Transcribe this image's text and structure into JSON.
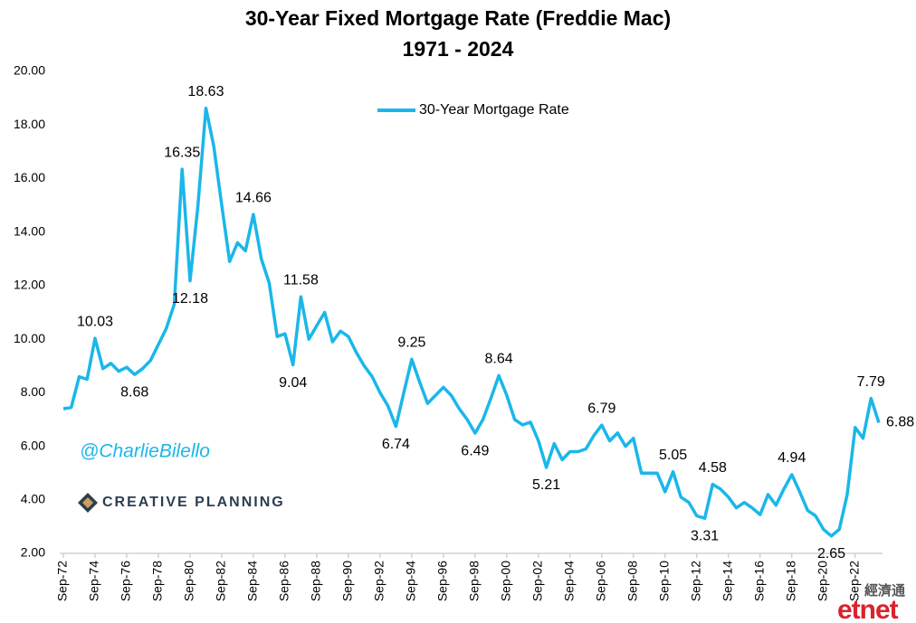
{
  "chart_data": {
    "type": "line",
    "title": "30-Year Fixed Mortgage Rate (Freddie Mac)",
    "subtitle": "1971 - 2024",
    "categories": [
      "Sep-72",
      null,
      null,
      null,
      "Sep-74",
      null,
      null,
      null,
      "Sep-76",
      null,
      null,
      null,
      "Sep-78",
      null,
      null,
      null,
      "Sep-80",
      null,
      null,
      null,
      "Sep-82",
      null,
      null,
      null,
      "Sep-84",
      null,
      null,
      null,
      "Sep-86",
      null,
      null,
      null,
      "Sep-88",
      null,
      null,
      null,
      "Sep-90",
      null,
      null,
      null,
      "Sep-92",
      null,
      null,
      null,
      "Sep-94",
      null,
      null,
      null,
      "Sep-96",
      null,
      null,
      null,
      "Sep-98",
      null,
      null,
      null,
      "Sep-00",
      null,
      null,
      null,
      "Sep-02",
      null,
      null,
      null,
      "Sep-04",
      null,
      null,
      null,
      "Sep-06",
      null,
      null,
      null,
      "Sep-08",
      null,
      null,
      null,
      "Sep-10",
      null,
      null,
      null,
      "Sep-12",
      null,
      null,
      null,
      "Sep-14",
      null,
      null,
      null,
      "Sep-16",
      null,
      null,
      null,
      "Sep-18",
      null,
      null,
      null,
      "Sep-20",
      null,
      null,
      null,
      "Sep-22",
      null,
      null,
      null
    ],
    "series": [
      {
        "name": "30-Year Mortgage Rate",
        "color": "#1ab7ea",
        "values": [
          7.4,
          7.45,
          8.6,
          8.5,
          10.03,
          8.9,
          9.1,
          8.8,
          8.95,
          8.68,
          8.9,
          9.2,
          9.8,
          10.4,
          11.3,
          16.35,
          12.18,
          15.0,
          18.63,
          17.2,
          15.0,
          12.9,
          13.6,
          13.3,
          14.66,
          13.0,
          12.1,
          10.1,
          10.2,
          9.04,
          11.58,
          10.0,
          10.5,
          11.0,
          9.9,
          10.3,
          10.1,
          9.5,
          9.0,
          8.6,
          8.0,
          7.5,
          6.74,
          8.0,
          9.25,
          8.4,
          7.6,
          7.9,
          8.2,
          7.9,
          7.4,
          7.0,
          6.49,
          7.0,
          7.8,
          8.64,
          7.9,
          7.0,
          6.8,
          6.9,
          6.2,
          5.21,
          6.1,
          5.5,
          5.8,
          5.8,
          5.9,
          6.4,
          6.79,
          6.2,
          6.5,
          6.0,
          6.3,
          5.0,
          5.0,
          5.0,
          4.3,
          5.05,
          4.1,
          3.9,
          3.4,
          3.31,
          4.58,
          4.4,
          4.1,
          3.7,
          3.9,
          3.7,
          3.45,
          4.2,
          3.8,
          4.4,
          4.94,
          4.3,
          3.6,
          3.4,
          2.9,
          2.65,
          2.9,
          4.2,
          6.7,
          6.3,
          7.79,
          6.88
        ],
        "value_labels": [
          null,
          null,
          null,
          null,
          "10.03",
          null,
          null,
          null,
          null,
          "8.68",
          null,
          null,
          null,
          null,
          null,
          "16.35",
          "12.18",
          null,
          "18.63",
          null,
          null,
          null,
          null,
          null,
          "14.66",
          null,
          null,
          null,
          null,
          "9.04",
          "11.58",
          null,
          null,
          null,
          null,
          null,
          null,
          null,
          null,
          null,
          null,
          null,
          "6.74",
          null,
          "9.25",
          null,
          null,
          null,
          null,
          null,
          null,
          null,
          "6.49",
          null,
          null,
          "8.64",
          null,
          null,
          null,
          null,
          null,
          "5.21",
          null,
          null,
          null,
          null,
          null,
          null,
          "6.79",
          null,
          null,
          null,
          null,
          null,
          null,
          null,
          null,
          "5.05",
          null,
          null,
          null,
          "3.31",
          "4.58",
          null,
          null,
          null,
          null,
          null,
          null,
          null,
          null,
          null,
          "4.94",
          null,
          null,
          null,
          null,
          "2.65",
          null,
          null,
          null,
          null,
          "7.79",
          "6.88"
        ]
      }
    ],
    "ylim": [
      2,
      20
    ],
    "yticks": [
      {
        "value": 2,
        "label": "2.00"
      },
      {
        "value": 4,
        "label": "4.00"
      },
      {
        "value": 6,
        "label": "6.00"
      },
      {
        "value": 8,
        "label": "8.00"
      },
      {
        "value": 10,
        "label": "10.00"
      },
      {
        "value": 12,
        "label": "12.00"
      },
      {
        "value": 14,
        "label": "14.00"
      },
      {
        "value": 16,
        "label": "16.00"
      },
      {
        "value": 18,
        "label": "18.00"
      },
      {
        "value": 20,
        "label": "20.00"
      }
    ],
    "grid": false,
    "legend": "top",
    "watermarks": [
      "@CharlieBilello",
      "CREATIVE PLANNING",
      "經濟通",
      "etnet"
    ]
  }
}
